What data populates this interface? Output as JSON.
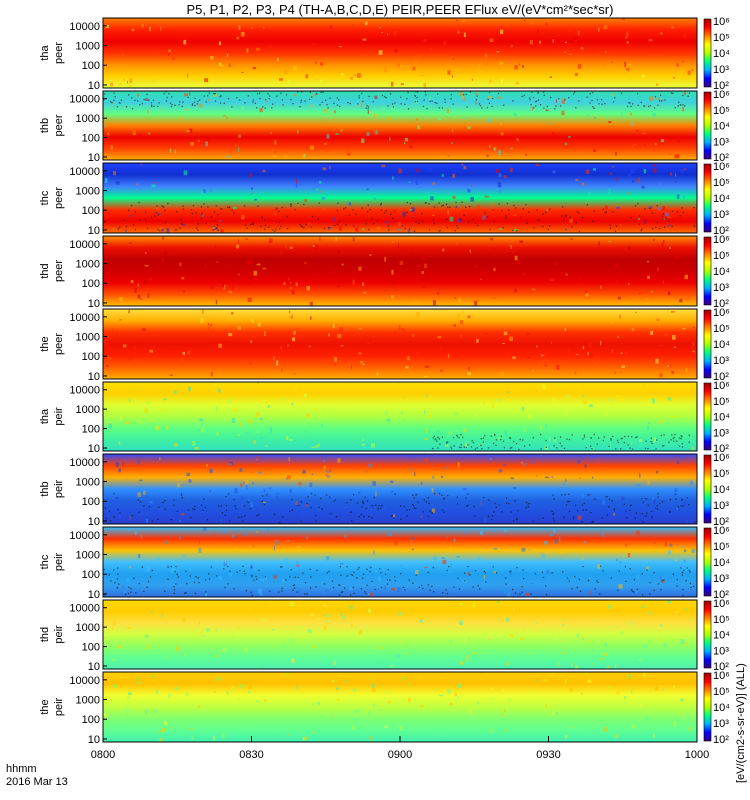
{
  "title": "P5, P1, P2, P3, P4 (TH-A,B,C,D,E) PEIR,PEER EFlux eV/(eV*cm²*sec*sr)",
  "x_label_hhmm": "hhmm",
  "x_label_date": "2016 Mar 13",
  "colorbar_label": "[eV/(cm2-s-sr-eV)] (ALL)",
  "chart_data": {
    "type": "heatmap",
    "time_axis": {
      "start": "0800",
      "end": "1000",
      "ticks": [
        "0800",
        "0830",
        "0900",
        "0930",
        "1000"
      ]
    },
    "y_scale": "log",
    "y_range_eV": [
      7,
      25000
    ],
    "y_ticks": [
      "10",
      "100",
      "1000",
      "10000"
    ],
    "colorbar_scale": "log",
    "colorbar_ticks": [
      "10²",
      "10³",
      "10⁴",
      "10⁵",
      "10⁶"
    ],
    "colormap": [
      "#3a007a",
      "#0000ff",
      "#00b0ff",
      "#00ff80",
      "#b0ff00",
      "#ffff00",
      "#ff8000",
      "#ff0000",
      "#a00000"
    ],
    "panels": [
      {
        "probe": "tha",
        "species": "peer",
        "label_1": "tha",
        "label_2": "peer"
      },
      {
        "probe": "thb",
        "species": "peer",
        "label_1": "thb",
        "label_2": "peer"
      },
      {
        "probe": "thc",
        "species": "peer",
        "label_1": "thc",
        "label_2": "peer"
      },
      {
        "probe": "thd",
        "species": "peer",
        "label_1": "thd",
        "label_2": "peer"
      },
      {
        "probe": "the",
        "species": "peer",
        "label_1": "the",
        "label_2": "peer"
      },
      {
        "probe": "tha",
        "species": "peir",
        "label_1": "tha",
        "label_2": "peir"
      },
      {
        "probe": "thb",
        "species": "peir",
        "label_1": "thb",
        "label_2": "peir"
      },
      {
        "probe": "thc",
        "species": "peir",
        "label_1": "thc",
        "label_2": "peir"
      },
      {
        "probe": "thd",
        "species": "peir",
        "label_1": "thd",
        "label_2": "peir"
      },
      {
        "probe": "the",
        "species": "peir",
        "label_1": "the",
        "label_2": "peir"
      }
    ]
  }
}
